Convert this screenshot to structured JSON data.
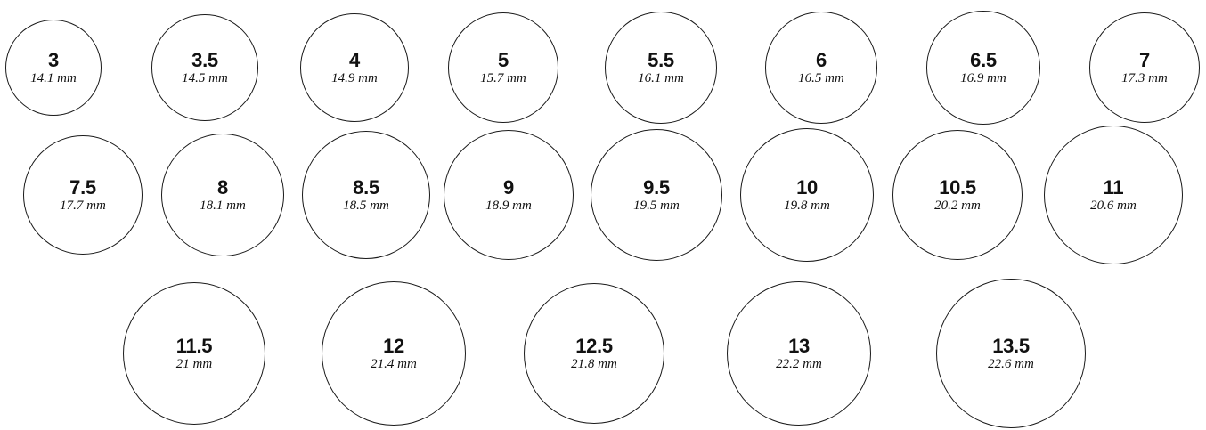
{
  "rings": [
    {
      "size": "3",
      "diameter": "14.1 mm"
    },
    {
      "size": "3.5",
      "diameter": "14.5 mm"
    },
    {
      "size": "4",
      "diameter": "14.9 mm"
    },
    {
      "size": "5",
      "diameter": "15.7 mm"
    },
    {
      "size": "5.5",
      "diameter": "16.1 mm"
    },
    {
      "size": "6",
      "diameter": "16.5 mm"
    },
    {
      "size": "6.5",
      "diameter": "16.9 mm"
    },
    {
      "size": "7",
      "diameter": "17.3 mm"
    },
    {
      "size": "7.5",
      "diameter": "17.7 mm"
    },
    {
      "size": "8",
      "diameter": "18.1 mm"
    },
    {
      "size": "8.5",
      "diameter": "18.5 mm"
    },
    {
      "size": "9",
      "diameter": "18.9 mm"
    },
    {
      "size": "9.5",
      "diameter": "19.5 mm"
    },
    {
      "size": "10",
      "diameter": "19.8 mm"
    },
    {
      "size": "10.5",
      "diameter": "20.2 mm"
    },
    {
      "size": "11",
      "diameter": "20.6 mm"
    },
    {
      "size": "11.5",
      "diameter": "21 mm"
    },
    {
      "size": "12",
      "diameter": "21.4 mm"
    },
    {
      "size": "12.5",
      "diameter": "21.8 mm"
    },
    {
      "size": "13",
      "diameter": "22.2 mm"
    },
    {
      "size": "13.5",
      "diameter": "22.6 mm"
    }
  ]
}
